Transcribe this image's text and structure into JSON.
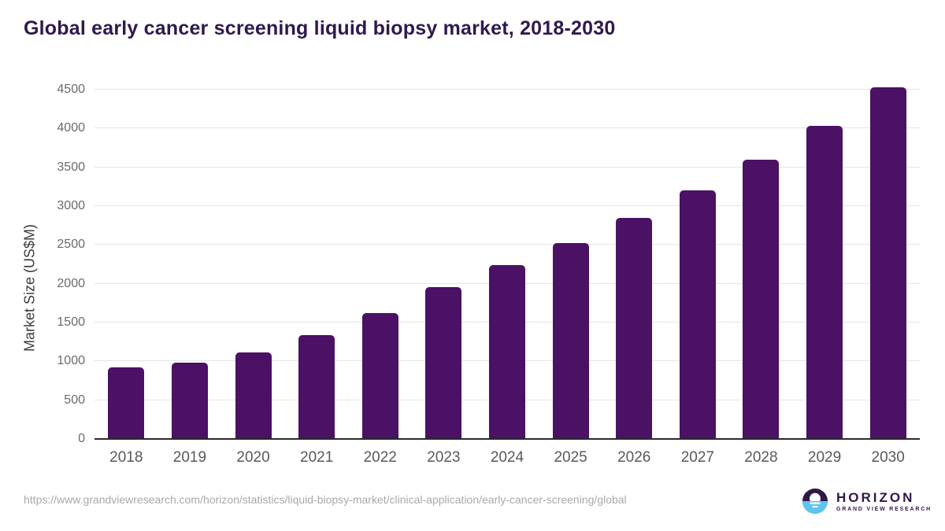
{
  "page": {
    "title": "Global early cancer screening liquid biopsy market, 2018-2030",
    "source_url": "https://www.grandviewresearch.com/horizon/statistics/liquid-biopsy-market/clinical-application/early-cancer-screening/global"
  },
  "logo": {
    "name": "HORIZON",
    "subtitle": "GRAND VIEW RESEARCH"
  },
  "colors": {
    "bar": "#4b1164",
    "title_text": "#2f194d",
    "gridline": "#e5e5e5",
    "axis_line": "#2b2b2b",
    "y_tick_label": "#6b6b6b",
    "x_tick_label": "#595959",
    "url_text": "#a9a9a9",
    "logo_purple": "#2e1a47",
    "logo_blue": "#5ec5f0"
  },
  "chart_data": {
    "type": "bar",
    "title": "Global early cancer screening liquid biopsy market, 2018-2030",
    "categories": [
      "2018",
      "2019",
      "2020",
      "2021",
      "2022",
      "2023",
      "2024",
      "2025",
      "2026",
      "2027",
      "2028",
      "2029",
      "2030"
    ],
    "values": [
      920,
      985,
      1110,
      1335,
      1620,
      1960,
      2245,
      2525,
      2845,
      3200,
      3600,
      4030,
      4530
    ],
    "xlabel": "",
    "ylabel": "Market Size (US$M)",
    "ylim": [
      0,
      4500
    ],
    "ytick_step": 500,
    "grid": "horizontal",
    "legend_position": "none",
    "bar_color": "#4b1164"
  }
}
